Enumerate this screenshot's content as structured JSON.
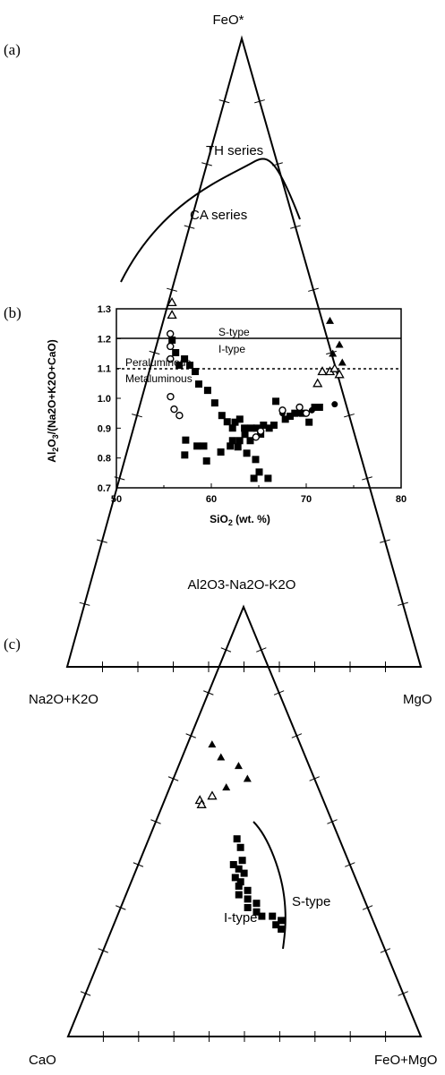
{
  "chart_data": [
    {
      "panel": "(a)",
      "type": "scatter",
      "subtype": "ternary",
      "vertices": {
        "top": "FeO*",
        "left": "Na2O+K2O",
        "right": "MgO"
      },
      "curve_labels": [
        "TH series",
        "CA series"
      ],
      "tholeiitic_calcalkaline_boundary": [
        [
          0.26,
          0.74,
          0.0
        ],
        [
          0.45,
          0.58,
          0.0
        ]
      ],
      "series": [
        {
          "marker": "filled-square",
          "points_barycentric": [
            [
              0.52,
              0.44,
              0.04
            ],
            [
              0.5,
              0.44,
              0.06
            ],
            [
              0.48,
              0.44,
              0.08
            ],
            [
              0.49,
              0.42,
              0.09
            ],
            [
              0.48,
              0.41,
              0.11
            ],
            [
              0.47,
              0.4,
              0.13
            ],
            [
              0.45,
              0.4,
              0.15
            ],
            [
              0.44,
              0.38,
              0.18
            ],
            [
              0.42,
              0.37,
              0.21
            ],
            [
              0.39,
              0.35,
              0.26
            ],
            [
              0.4,
              0.36,
              0.24
            ],
            [
              0.38,
              0.34,
              0.28
            ],
            [
              0.36,
              0.33,
              0.31
            ],
            [
              0.35,
              0.34,
              0.31
            ],
            [
              0.36,
              0.35,
              0.29
            ],
            [
              0.34,
              0.32,
              0.34
            ],
            [
              0.37,
              0.31,
              0.32
            ],
            [
              0.36,
              0.3,
              0.34
            ],
            [
              0.33,
              0.3,
              0.37
            ],
            [
              0.31,
              0.3,
              0.39
            ],
            [
              0.3,
              0.32,
              0.38
            ],
            [
              0.3,
              0.28,
              0.42
            ]
          ]
        },
        {
          "marker": "open-circle",
          "points_barycentric": [
            [
              0.53,
              0.44,
              0.03
            ],
            [
              0.51,
              0.45,
              0.04
            ],
            [
              0.49,
              0.46,
              0.05
            ],
            [
              0.43,
              0.49,
              0.08
            ],
            [
              0.41,
              0.49,
              0.1
            ],
            [
              0.4,
              0.48,
              0.12
            ]
          ]
        },
        {
          "marker": "open-triangle",
          "points_barycentric": [
            [
              0.58,
              0.41,
              0.01
            ],
            [
              0.56,
              0.42,
              0.02
            ]
          ]
        }
      ]
    },
    {
      "panel": "(b)",
      "type": "scatter",
      "xlabel": "SiO2 (wt. %)",
      "ylabel": "Al2O3/(Na2O+K2O+CaO)",
      "xlim": [
        50,
        80
      ],
      "ylim": [
        0.7,
        1.3
      ],
      "xticks": [
        "50",
        "60",
        "70",
        "80"
      ],
      "yticks": [
        "0.7",
        "0.8",
        "0.9",
        "1.0",
        "1.1",
        "1.2",
        "1.3"
      ],
      "reference_lines": [
        {
          "y": 1.1,
          "style": "solid",
          "label_above": "S-type",
          "label_below": "I-type"
        },
        {
          "y": 1.0,
          "style": "dotted",
          "label_above": "Peraluminous",
          "label_below": "Metaluminous"
        }
      ],
      "series": [
        {
          "marker": "filled-square",
          "points": [
            [
              57.3,
              0.86
            ],
            [
              57.2,
              0.81
            ],
            [
              58.5,
              0.84
            ],
            [
              59.2,
              0.84
            ],
            [
              59.5,
              0.79
            ],
            [
              61.0,
              0.82
            ],
            [
              62.0,
              0.84
            ],
            [
              62.5,
              0.92
            ],
            [
              63.0,
              0.93
            ],
            [
              63.5,
              0.9
            ],
            [
              64.2,
              0.9
            ],
            [
              64.8,
              0.9
            ],
            [
              65.2,
              0.88
            ],
            [
              65.5,
              0.91
            ],
            [
              66.1,
              0.9
            ],
            [
              66.6,
              0.91
            ],
            [
              66.8,
              0.99
            ],
            [
              67.8,
              0.93
            ],
            [
              68.3,
              0.94
            ],
            [
              68.8,
              0.95
            ],
            [
              69.6,
              0.95
            ],
            [
              70.3,
              0.92
            ],
            [
              70.9,
              0.97
            ],
            [
              71.4,
              0.97
            ]
          ]
        },
        {
          "marker": "filled-circle",
          "points": [
            [
              67.5,
              0.95
            ],
            [
              69.2,
              0.95
            ],
            [
              70.6,
              0.96
            ],
            [
              71.0,
              0.97
            ],
            [
              73.0,
              0.98
            ]
          ]
        },
        {
          "marker": "open-circle",
          "points": [
            [
              64.7,
              0.87
            ],
            [
              65.2,
              0.89
            ],
            [
              67.5,
              0.96
            ],
            [
              69.3,
              0.97
            ],
            [
              70.0,
              0.95
            ]
          ]
        },
        {
          "marker": "filled-triangle",
          "points": [
            [
              72.5,
              1.26
            ],
            [
              72.8,
              1.15
            ],
            [
              73.5,
              1.18
            ],
            [
              73.8,
              1.12
            ]
          ]
        },
        {
          "marker": "open-triangle",
          "points": [
            [
              71.2,
              1.05
            ],
            [
              71.7,
              1.09
            ],
            [
              72.5,
              1.09
            ],
            [
              73.0,
              1.1
            ],
            [
              73.5,
              1.08
            ]
          ]
        }
      ]
    },
    {
      "panel": "(c)",
      "type": "scatter",
      "subtype": "ternary",
      "vertices": {
        "top": "Al2O3-Na2O-K2O",
        "left": "CaO",
        "right": "FeO+MgO"
      },
      "region_labels": [
        "I-type",
        "S-type"
      ],
      "series": [
        {
          "marker": "filled-square",
          "points_barycentric": [
            [
              0.46,
              0.29,
              0.25
            ],
            [
              0.44,
              0.29,
              0.27
            ],
            [
              0.41,
              0.3,
              0.29
            ],
            [
              0.39,
              0.32,
              0.29
            ],
            [
              0.38,
              0.31,
              0.31
            ],
            [
              0.36,
              0.33,
              0.31
            ],
            [
              0.34,
              0.32,
              0.34
            ],
            [
              0.32,
              0.33,
              0.35
            ],
            [
              0.3,
              0.34,
              0.36
            ],
            [
              0.31,
              0.31,
              0.38
            ],
            [
              0.29,
              0.32,
              0.39
            ],
            [
              0.28,
              0.31,
              0.41
            ],
            [
              0.28,
              0.28,
              0.44
            ],
            [
              0.4,
              0.33,
              0.27
            ],
            [
              0.37,
              0.34,
              0.29
            ],
            [
              0.35,
              0.34,
              0.31
            ],
            [
              0.33,
              0.35,
              0.32
            ],
            [
              0.26,
              0.28,
              0.46
            ],
            [
              0.27,
              0.26,
              0.47
            ],
            [
              0.25,
              0.27,
              0.48
            ]
          ]
        },
        {
          "marker": "open-triangle",
          "points_barycentric": [
            [
              0.55,
              0.35,
              0.1
            ],
            [
              0.54,
              0.35,
              0.11
            ],
            [
              0.56,
              0.31,
              0.13
            ]
          ]
        },
        {
          "marker": "filled-triangle",
          "points_barycentric": [
            [
              0.68,
              0.25,
              0.07
            ],
            [
              0.65,
              0.24,
              0.11
            ],
            [
              0.63,
              0.2,
              0.17
            ],
            [
              0.6,
              0.19,
              0.21
            ],
            [
              0.58,
              0.26,
              0.16
            ]
          ]
        }
      ]
    }
  ],
  "labels": {
    "a_panel": "(a)",
    "a_top": "FeO*",
    "a_left": "Na2O+K2O",
    "a_right": "MgO",
    "a_th": "TH series",
    "a_ca": "CA series",
    "b_panel": "(b)",
    "b_xlabel": "SiO",
    "b_xsub": "2",
    "b_xrest": " (wt. %)",
    "b_ylabel": "Al",
    "b_stype": "S-type",
    "b_itype": "I-type",
    "b_peral": "Peraluminous",
    "b_metal": "Metaluminous",
    "c_panel": "(c)",
    "c_top": "Al2O3-Na2O-K2O",
    "c_left": "CaO",
    "c_right": "FeO+MgO",
    "c_itype": "I-type",
    "c_stype": "S-type"
  }
}
